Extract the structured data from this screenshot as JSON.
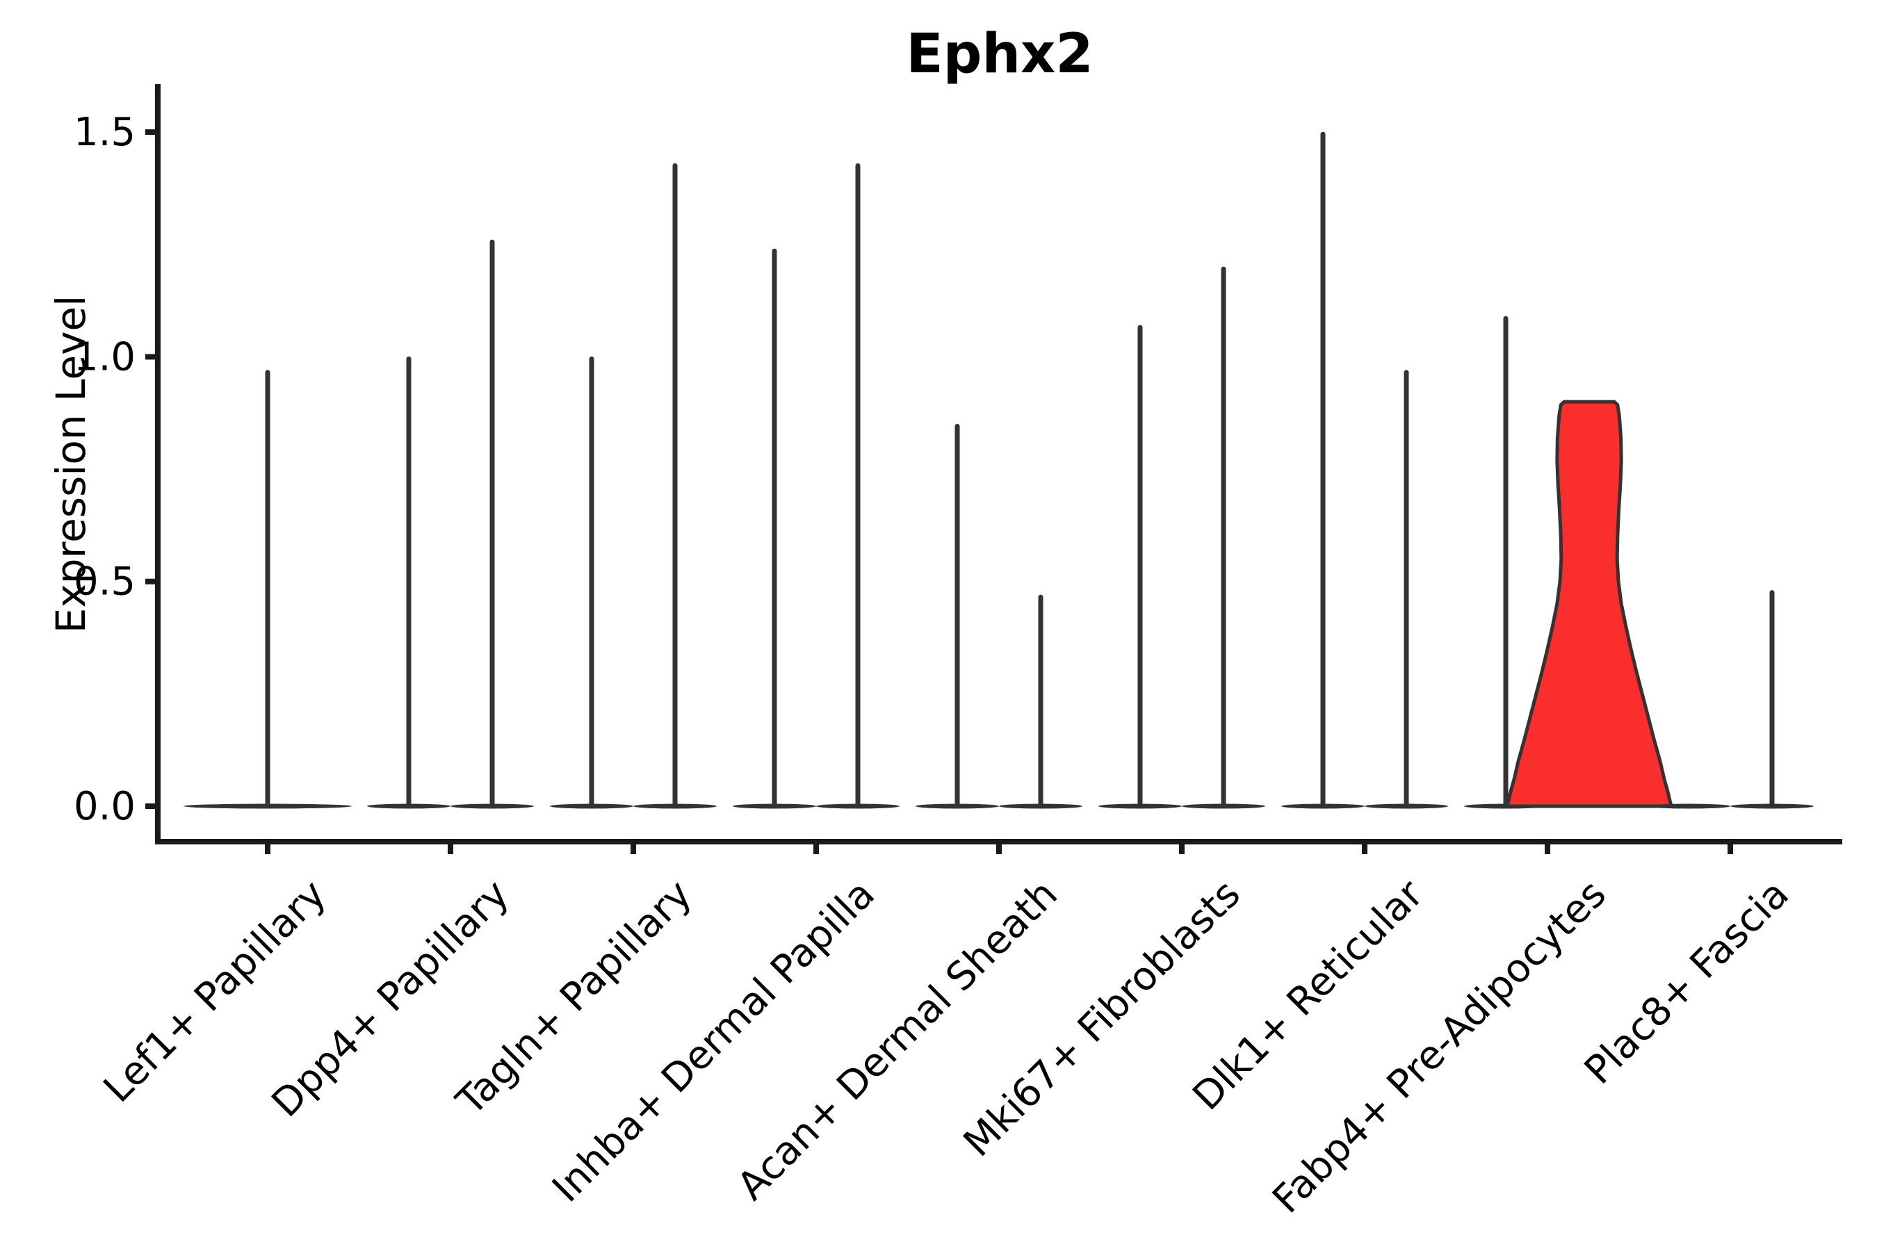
{
  "title": "Ephx2",
  "colors": {
    "background": "#ffffff",
    "spine": "#1a1a1a",
    "violin_black": "#333333",
    "highlight_fill": "#fb2e2e",
    "highlight_stroke": "#333333",
    "text": "#000000"
  },
  "chart_data": {
    "type": "violin",
    "title": "Ephx2",
    "xlabel": "",
    "ylabel": "Expression Level",
    "ylim": [
      -0.08,
      1.61
    ],
    "yticks": [
      0.0,
      0.5,
      1.0,
      1.5
    ],
    "ytick_labels": [
      "0.0",
      "0.5",
      "1.0",
      "1.5"
    ],
    "grid": false,
    "legend": "none",
    "description": "Violin plot of Ephx2 expression per fibroblast cluster; most violins collapse to a flat base at 0 with a thin density spike up to the max expressed cell; the right-hand Fabp4+ Pre-Adipocytes violin is filled red with substantial width (broad expression).",
    "categories": [
      "Lef1+ Papillary",
      "Dpp4+ Papillary",
      "Tagln+ Papillary",
      "Inhba+ Dermal Papilla",
      "Acan+ Dermal Sheath",
      "Mki67+ Fibroblasts",
      "Dlk1+ Reticular",
      "Fabp4+ Pre-Adipocytes",
      "Plac8+ Fascia"
    ],
    "series": [
      {
        "category": "Lef1+ Papillary",
        "violins": [
          {
            "group": "center",
            "max": 0.97,
            "spike": true,
            "highlight": false
          }
        ]
      },
      {
        "category": "Dpp4+ Papillary",
        "violins": [
          {
            "group": "left",
            "max": 1.0,
            "spike": true,
            "highlight": false
          },
          {
            "group": "right",
            "max": 1.26,
            "spike": true,
            "highlight": false
          }
        ]
      },
      {
        "category": "Tagln+ Papillary",
        "violins": [
          {
            "group": "left",
            "max": 1.0,
            "spike": true,
            "highlight": false
          },
          {
            "group": "right",
            "max": 1.43,
            "spike": true,
            "highlight": false
          }
        ]
      },
      {
        "category": "Inhba+ Dermal Papilla",
        "violins": [
          {
            "group": "left",
            "max": 1.24,
            "spike": true,
            "highlight": false
          },
          {
            "group": "right",
            "max": 1.43,
            "spike": true,
            "highlight": false
          }
        ]
      },
      {
        "category": "Acan+ Dermal Sheath",
        "violins": [
          {
            "group": "left",
            "max": 0.85,
            "spike": true,
            "highlight": false
          },
          {
            "group": "right",
            "max": 0.47,
            "spike": true,
            "highlight": false
          }
        ]
      },
      {
        "category": "Mki67+ Fibroblasts",
        "violins": [
          {
            "group": "left",
            "max": 1.07,
            "spike": true,
            "highlight": false
          },
          {
            "group": "right",
            "max": 1.2,
            "spike": true,
            "highlight": false
          }
        ]
      },
      {
        "category": "Dlk1+ Reticular",
        "violins": [
          {
            "group": "left",
            "max": 1.5,
            "spike": true,
            "highlight": false
          },
          {
            "group": "right",
            "max": 0.97,
            "spike": true,
            "highlight": false
          }
        ]
      },
      {
        "category": "Fabp4+ Pre-Adipocytes",
        "violins": [
          {
            "group": "left",
            "max": 1.09,
            "spike": true,
            "highlight": false
          },
          {
            "group": "right",
            "max": 0.9,
            "spike": false,
            "highlight": true
          }
        ]
      },
      {
        "category": "Plac8+ Fascia",
        "violins": [
          {
            "group": "left",
            "max": 0.0,
            "spike": false,
            "highlight": false
          },
          {
            "group": "right",
            "max": 0.48,
            "spike": true,
            "highlight": false
          }
        ]
      }
    ],
    "highlight_profile": [
      [
        0.9,
        0.3
      ],
      [
        0.893,
        0.34
      ],
      [
        0.87,
        0.36
      ],
      [
        0.82,
        0.38
      ],
      [
        0.77,
        0.385
      ],
      [
        0.72,
        0.375
      ],
      [
        0.66,
        0.355
      ],
      [
        0.6,
        0.34
      ],
      [
        0.55,
        0.335
      ],
      [
        0.5,
        0.35
      ],
      [
        0.45,
        0.385
      ],
      [
        0.4,
        0.44
      ],
      [
        0.35,
        0.5
      ],
      [
        0.3,
        0.565
      ],
      [
        0.25,
        0.635
      ],
      [
        0.2,
        0.705
      ],
      [
        0.15,
        0.775
      ],
      [
        0.1,
        0.85
      ],
      [
        0.06,
        0.9
      ],
      [
        0.03,
        0.945
      ],
      [
        0.01,
        0.97
      ],
      [
        0.0,
        0.985
      ]
    ]
  }
}
